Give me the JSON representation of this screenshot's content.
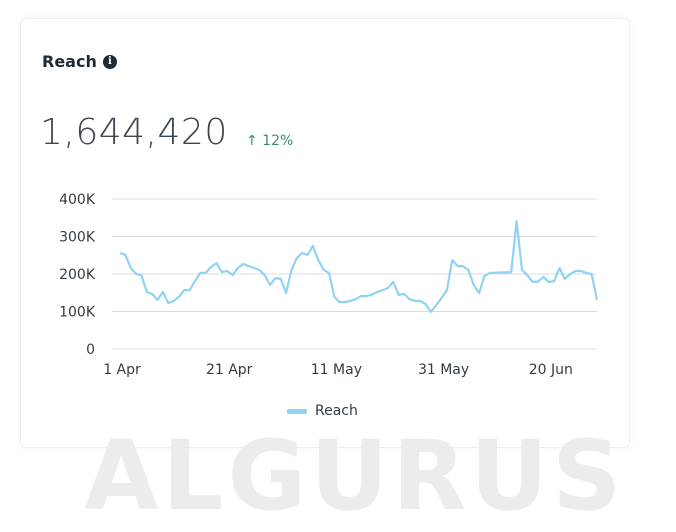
{
  "card": {
    "title": "Reach",
    "info_icon": "info-icon",
    "total": "1,644,420",
    "delta_arrow": "↑",
    "delta": "12%",
    "delta_color": "#3a8f6e"
  },
  "watermark": "ALGURUS",
  "chart_data": {
    "type": "line",
    "title": "",
    "xlabel": "",
    "ylabel": "",
    "ylim": [
      0,
      400000
    ],
    "y_ticks": [
      "0",
      "100K",
      "200K",
      "300K",
      "400K"
    ],
    "y_tick_values": [
      0,
      100000,
      200000,
      300000,
      400000
    ],
    "x_ticks": [
      "1 Apr",
      "21 Apr",
      "11 May",
      "31 May",
      "20 Jun"
    ],
    "grid": true,
    "legend": "bottom",
    "x": [
      "1 Apr",
      "2 Apr",
      "3 Apr",
      "4 Apr",
      "5 Apr",
      "6 Apr",
      "7 Apr",
      "8 Apr",
      "9 Apr",
      "10 Apr",
      "11 Apr",
      "12 Apr",
      "13 Apr",
      "14 Apr",
      "15 Apr",
      "16 Apr",
      "17 Apr",
      "18 Apr",
      "19 Apr",
      "20 Apr",
      "21 Apr",
      "22 Apr",
      "23 Apr",
      "24 Apr",
      "25 Apr",
      "26 Apr",
      "27 Apr",
      "28 Apr",
      "29 Apr",
      "30 Apr",
      "1 May",
      "2 May",
      "3 May",
      "4 May",
      "5 May",
      "6 May",
      "7 May",
      "8 May",
      "9 May",
      "10 May",
      "11 May",
      "12 May",
      "13 May",
      "14 May",
      "15 May",
      "16 May",
      "17 May",
      "18 May",
      "19 May",
      "20 May",
      "21 May",
      "22 May",
      "23 May",
      "24 May",
      "25 May",
      "26 May",
      "27 May",
      "28 May",
      "29 May",
      "30 May",
      "31 May",
      "1 Jun",
      "2 Jun",
      "3 Jun",
      "4 Jun",
      "5 Jun",
      "6 Jun",
      "7 Jun",
      "8 Jun",
      "9 Jun",
      "10 Jun",
      "11 Jun",
      "12 Jun",
      "13 Jun",
      "14 Jun",
      "15 Jun",
      "16 Jun",
      "17 Jun",
      "18 Jun",
      "19 Jun",
      "20 Jun",
      "21 Jun",
      "22 Jun",
      "23 Jun",
      "24 Jun",
      "25 Jun",
      "26 Jun",
      "27 Jun",
      "28 Jun",
      "29 Jun"
    ],
    "series": [
      {
        "name": "Reach",
        "color": "#8fd3f4",
        "values": [
          256000,
          251000,
          216000,
          200000,
          197000,
          152000,
          147000,
          131000,
          152000,
          123000,
          128000,
          139000,
          157000,
          157000,
          181000,
          203000,
          203000,
          219000,
          229000,
          205000,
          208000,
          197000,
          216000,
          227000,
          221000,
          216000,
          211000,
          197000,
          171000,
          189000,
          187000,
          149000,
          211000,
          243000,
          256000,
          251000,
          275000,
          237000,
          211000,
          203000,
          139000,
          125000,
          125000,
          128000,
          133000,
          141000,
          141000,
          145000,
          152000,
          157000,
          163000,
          179000,
          144000,
          147000,
          133000,
          128000,
          128000,
          120000,
          99000,
          117000,
          136000,
          157000,
          237000,
          221000,
          221000,
          211000,
          171000,
          149000,
          195000,
          203000,
          203000,
          204000,
          204000,
          205000,
          341000,
          211000,
          197000,
          179000,
          180000,
          192000,
          179000,
          181000,
          216000,
          187000,
          200000,
          208000,
          208000,
          203000,
          200000,
          131000
        ]
      }
    ]
  }
}
